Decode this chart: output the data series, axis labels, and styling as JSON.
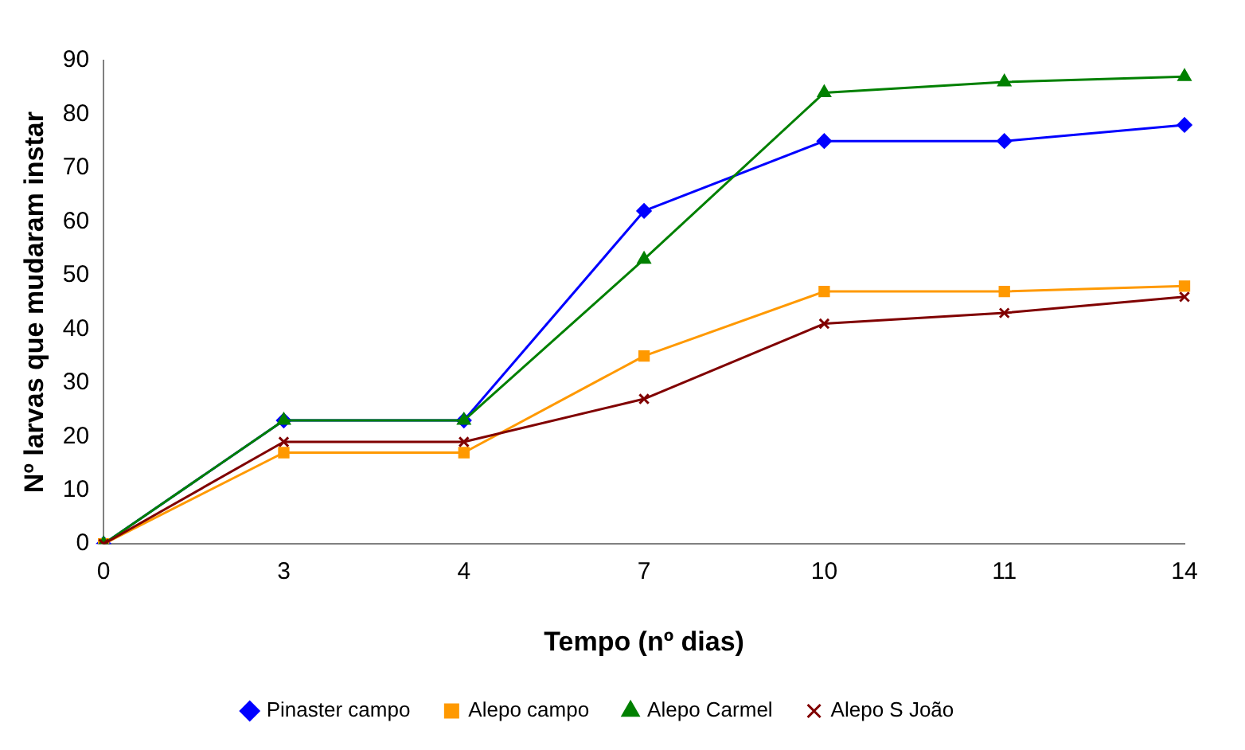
{
  "chart_data": {
    "type": "line",
    "xlabel": "Tempo (nº dias)",
    "ylabel": "Nº larvas que mudaram instar",
    "categories": [
      "0",
      "3",
      "4",
      "7",
      "10",
      "11",
      "14"
    ],
    "ylim": [
      0,
      90
    ],
    "yticks": [
      0,
      10,
      20,
      30,
      40,
      50,
      60,
      70,
      80,
      90
    ],
    "grid": false,
    "legend": "bottom",
    "line_style": "solid",
    "series": [
      {
        "name": "Pinaster campo",
        "color": "#0000ff",
        "marker": "diamond",
        "values": [
          0,
          23,
          23,
          62,
          75,
          75,
          78
        ]
      },
      {
        "name": "Alepo campo",
        "color": "#ff9900",
        "marker": "square",
        "values": [
          0,
          17,
          17,
          35,
          47,
          47,
          48
        ]
      },
      {
        "name": "Alepo Carmel",
        "color": "#008000",
        "marker": "triangle",
        "values": [
          0,
          23,
          23,
          53,
          84,
          86,
          87
        ]
      },
      {
        "name": "Alepo S João",
        "color": "#800000",
        "marker": "cross",
        "values": [
          0,
          19,
          19,
          27,
          41,
          43,
          46
        ]
      }
    ]
  }
}
